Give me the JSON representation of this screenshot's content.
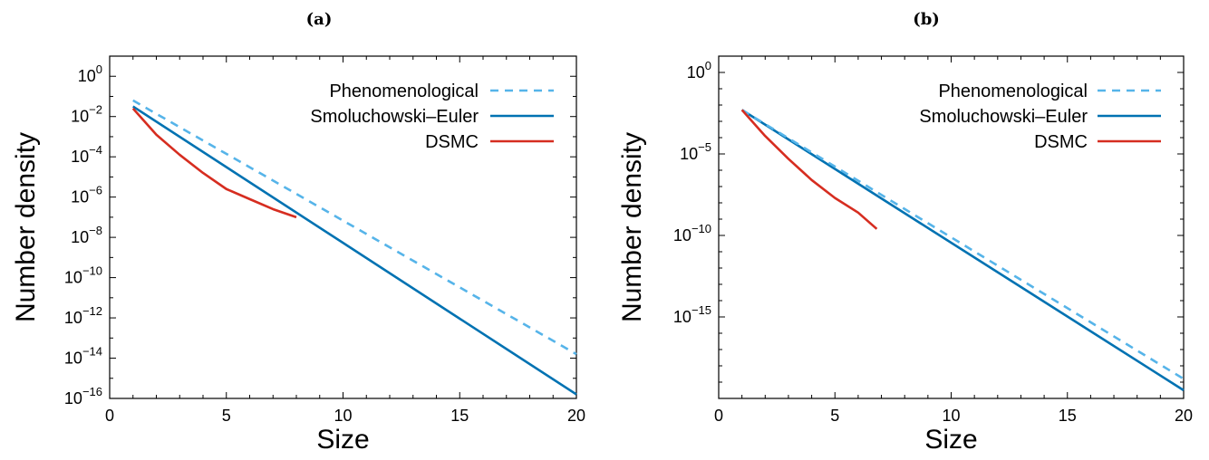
{
  "chart_data": [
    {
      "type": "line",
      "panel_label": "(a)",
      "xlabel": "Size",
      "ylabel": "Number density",
      "xlim": [
        0,
        20
      ],
      "ylim_exp": [
        -16,
        1
      ],
      "y_scale": "log",
      "x_ticks": [
        0,
        5,
        10,
        15,
        20
      ],
      "y_tick_exponents": [
        0,
        -2,
        -4,
        -6,
        -8,
        -10,
        -12,
        -14,
        -16
      ],
      "legend_position": "top-right",
      "series": [
        {
          "name": "Phenomenological",
          "color": "#56b4e9",
          "dash": true,
          "x": [
            1,
            20
          ],
          "log10_y": [
            -1.2,
            -13.8
          ]
        },
        {
          "name": "Smoluchowski–Euler",
          "color": "#0072b2",
          "dash": false,
          "x": [
            1,
            20
          ],
          "log10_y": [
            -1.5,
            -15.8
          ]
        },
        {
          "name": "DSMC",
          "color": "#d62d20",
          "dash": false,
          "x": [
            1,
            2,
            3,
            4,
            5,
            6,
            7,
            8
          ],
          "log10_y": [
            -1.6,
            -2.9,
            -3.9,
            -4.8,
            -5.6,
            -6.1,
            -6.6,
            -7.0
          ]
        }
      ]
    },
    {
      "type": "line",
      "panel_label": "(b)",
      "xlabel": "Size",
      "ylabel": "Number density",
      "xlim": [
        0,
        20
      ],
      "ylim_exp": [
        -20,
        1
      ],
      "y_scale": "log",
      "x_ticks": [
        0,
        5,
        10,
        15,
        20
      ],
      "y_tick_exponents": [
        0,
        -5,
        -10,
        -15
      ],
      "legend_position": "top-right",
      "series": [
        {
          "name": "Phenomenological",
          "color": "#56b4e9",
          "dash": true,
          "x": [
            1,
            20
          ],
          "log10_y": [
            -2.3,
            -18.8
          ]
        },
        {
          "name": "Smoluchowski–Euler",
          "color": "#0072b2",
          "dash": false,
          "x": [
            1,
            20
          ],
          "log10_y": [
            -2.3,
            -19.5
          ]
        },
        {
          "name": "DSMC",
          "color": "#d62d20",
          "dash": false,
          "x": [
            1,
            2,
            3,
            4,
            5,
            6,
            6.8
          ],
          "log10_y": [
            -2.3,
            -3.9,
            -5.3,
            -6.6,
            -7.7,
            -8.6,
            -9.6
          ]
        }
      ]
    }
  ]
}
